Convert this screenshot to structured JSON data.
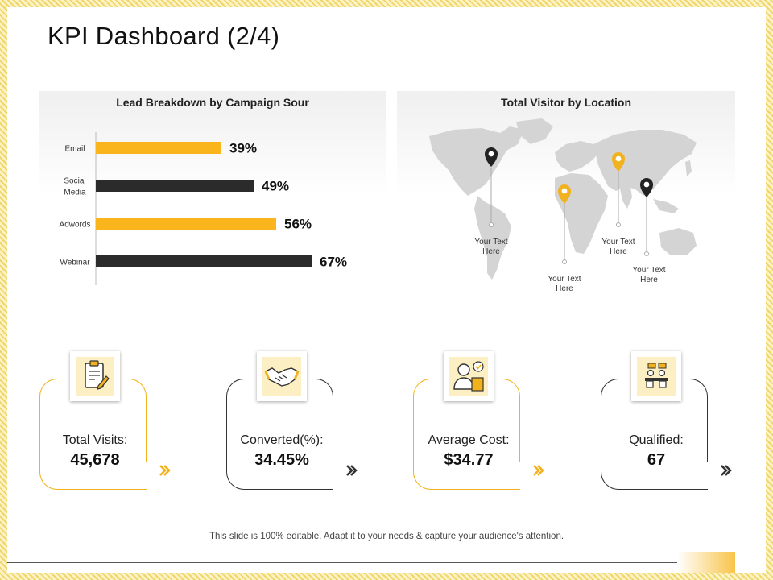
{
  "title": "KPI Dashboard (2/4)",
  "lead_panel": {
    "title": "Lead Breakdown by Campaign Sour"
  },
  "visitor_panel": {
    "title": "Total Visitor by Location",
    "pins": [
      {
        "name": "north-america",
        "color": "#222222",
        "label": "Your Text\nHere"
      },
      {
        "name": "africa",
        "color": "#f2b21e",
        "label": "Your Text\nHere"
      },
      {
        "name": "russia",
        "color": "#f2b21e",
        "label": "Your Text\nHere"
      },
      {
        "name": "asia",
        "color": "#222222",
        "label": "Your Text\nHere"
      }
    ]
  },
  "chart_data": {
    "type": "bar",
    "orientation": "horizontal",
    "categories": [
      "Email",
      "Social\nMedia",
      "Adwords",
      "Webinar"
    ],
    "values": [
      39,
      49,
      56,
      67
    ],
    "value_labels": [
      "39%",
      "49%",
      "56%",
      "67%"
    ],
    "bar_colors": [
      "#f9b51b",
      "#2b2b2b",
      "#f9b51b",
      "#2b2b2b"
    ],
    "xlim": [
      0,
      100
    ],
    "grid": false,
    "title": "Lead Breakdown by Campaign Sour"
  },
  "kpis": [
    {
      "label": "Total Visits:",
      "value": "45,678",
      "icon": "clipboard-icon",
      "accent": "#f2b21e"
    },
    {
      "label": "Converted(%):",
      "value": "34.45%",
      "icon": "handshake-icon",
      "accent": "#333333"
    },
    {
      "label": "Average Cost:",
      "value": "$34.77",
      "icon": "person-document-icon",
      "accent": "#f2b21e"
    },
    {
      "label": "Qualified:",
      "value": "67",
      "icon": "meeting-icon",
      "accent": "#333333"
    }
  ],
  "footer": "This slide is 100% editable. Adapt it to your needs & capture your audience's attention.",
  "colors": {
    "accent": "#f9b51b",
    "dark": "#2b2b2b"
  }
}
